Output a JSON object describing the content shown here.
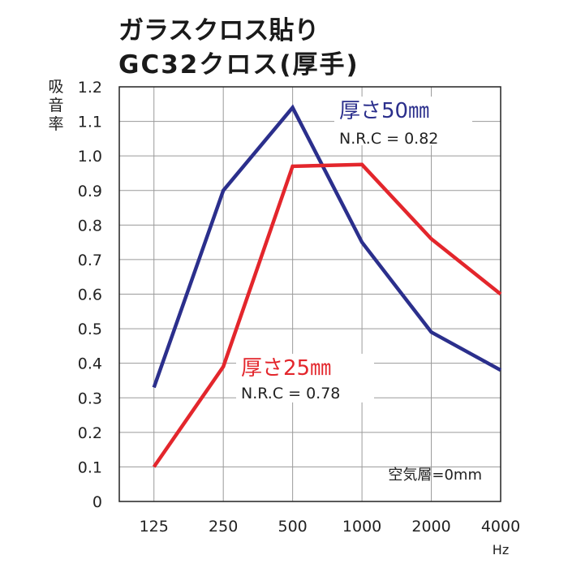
{
  "chart_data": {
    "type": "line",
    "title": [
      "ガラスクロス貼り",
      "GC32クロス(厚手)"
    ],
    "ylabel": "吸音率",
    "xlabel": "Hz",
    "categories": [
      "125",
      "250",
      "500",
      "1000",
      "2000",
      "4000"
    ],
    "ylim": [
      0,
      1.2
    ],
    "yticks": [
      "0",
      "0.1",
      "0.2",
      "0.3",
      "0.4",
      "0.5",
      "0.6",
      "0.7",
      "0.8",
      "0.9",
      "1.0",
      "1.1",
      "1.2"
    ],
    "grid": true,
    "series": [
      {
        "name": "厚さ50㎜",
        "nrc": "N.R.C = 0.82",
        "color": "#2b2f8c",
        "values": [
          0.33,
          0.9,
          1.14,
          0.75,
          0.49,
          0.38
        ]
      },
      {
        "name": "厚さ25㎜",
        "nrc": "N.R.C = 0.78",
        "color": "#e3262c",
        "values": [
          0.1,
          0.39,
          0.97,
          0.975,
          0.76,
          0.6
        ]
      }
    ],
    "annotation": "空気層=0mm"
  }
}
